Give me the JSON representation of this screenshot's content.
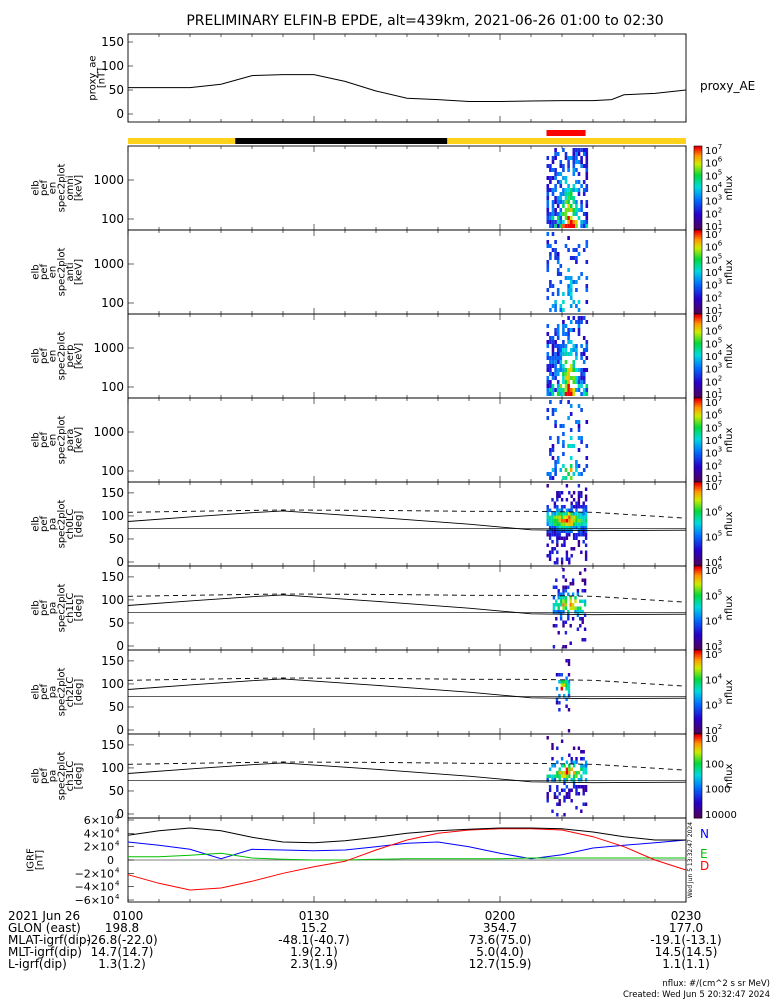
{
  "title": "PRELIMINARY ELFIN-B EPDE, alt=439km, 2021-06-26 01:00 to 02:30",
  "colors": {
    "sunlit": "#ffd21a",
    "shadow": "#000000",
    "science": "#ff0000",
    "bfield_n": "#0000ff",
    "bfield_e": "#00c000",
    "bfield_d": "#ff0000",
    "bfield_total": "#000000"
  },
  "orbit_bar": {
    "segments": [
      {
        "start_min": 0,
        "end_min": 17.3,
        "state": "sunlit"
      },
      {
        "start_min": 17.3,
        "end_min": 51.5,
        "state": "shadow"
      },
      {
        "start_min": 51.5,
        "end_min": 90,
        "state": "sunlit"
      }
    ],
    "science_zone": {
      "start_min": 67.5,
      "end_min": 73.8
    }
  },
  "chart_data": [
    {
      "type": "line",
      "panel": "proxy_ae",
      "ylabel": [
        "proxy_ae",
        "[nT]"
      ],
      "series_label": "proxy_AE",
      "yticks": [
        "150",
        "100",
        "50",
        "0"
      ],
      "ylim": [
        0,
        150
      ],
      "x_min": [
        0,
        5,
        10,
        15,
        20,
        25,
        30,
        35,
        40,
        45,
        50,
        55,
        60,
        65,
        70,
        75,
        78,
        80,
        85,
        90
      ],
      "y": [
        55,
        55,
        55,
        62,
        80,
        82,
        82,
        68,
        48,
        33,
        30,
        26,
        26,
        27,
        28,
        28,
        30,
        40,
        43,
        50
      ]
    },
    {
      "type": "heatmap",
      "panel": "spectrogram",
      "ylabel": [
        "elb",
        "pef",
        "en",
        "spec2plot",
        "omni",
        "[keV]"
      ],
      "yticks": [
        "1000",
        "100"
      ],
      "y_unit": "keV",
      "cbar_label": "nflux",
      "cbar_ticks": [
        "10",
        "10",
        "10",
        "10",
        "10",
        "10",
        "10"
      ],
      "cbar_exps": [
        "1",
        "2",
        "3",
        "4",
        "5",
        "6",
        "7"
      ],
      "active_window_min": [
        67.5,
        73.8
      ]
    },
    {
      "type": "heatmap",
      "panel": "spectrogram",
      "ylabel": [
        "elb",
        "pef",
        "en",
        "spec2plot",
        "anti",
        "[keV]"
      ],
      "yticks": [
        "1000",
        "100"
      ],
      "y_unit": "keV",
      "cbar_label": "nflux",
      "cbar_ticks": [
        "10",
        "10",
        "10",
        "10",
        "10",
        "10",
        "10"
      ],
      "cbar_exps": [
        "1",
        "2",
        "3",
        "4",
        "5",
        "6",
        "7"
      ],
      "active_window_min": [
        67.5,
        73.8
      ]
    },
    {
      "type": "heatmap",
      "panel": "spectrogram",
      "ylabel": [
        "elb",
        "pef",
        "en",
        "spec2plot",
        "perp",
        "[keV]"
      ],
      "yticks": [
        "1000",
        "100"
      ],
      "y_unit": "keV",
      "cbar_label": "nflux",
      "cbar_ticks": [
        "10",
        "10",
        "10",
        "10",
        "10",
        "10",
        "10"
      ],
      "cbar_exps": [
        "1",
        "2",
        "3",
        "4",
        "5",
        "6",
        "7"
      ],
      "active_window_min": [
        67.5,
        73.8
      ]
    },
    {
      "type": "heatmap",
      "panel": "spectrogram",
      "ylabel": [
        "elb",
        "pef",
        "en",
        "spec2plot",
        "para",
        "[keV]"
      ],
      "yticks": [
        "1000",
        "100"
      ],
      "y_unit": "keV",
      "cbar_label": "nflux",
      "cbar_ticks": [
        "10",
        "10",
        "10",
        "10",
        "10",
        "10",
        "10"
      ],
      "cbar_exps": [
        "1",
        "2",
        "3",
        "4",
        "5",
        "6",
        "7"
      ],
      "active_window_min": [
        67.5,
        73.8
      ]
    },
    {
      "type": "heatmap",
      "panel": "pitch_angle",
      "ylabel": [
        "elb",
        "pef",
        "pa",
        "spec2plot",
        "ch0LC",
        "[deg]"
      ],
      "yticks": [
        "150",
        "100",
        "50",
        "0"
      ],
      "ylim": [
        0,
        180
      ],
      "cbar_label": "nflux",
      "cbar_ticks": [
        "10",
        "10",
        "10",
        "10"
      ],
      "cbar_exps": [
        "4",
        "5",
        "6",
        "7"
      ],
      "loss_cone_solid_deg": [
        88,
        98,
        107,
        111,
        97,
        82,
        70,
        68,
        69
      ],
      "loss_cone_dashed_deg": [
        108,
        110,
        112,
        113,
        112,
        110,
        110,
        108,
        95
      ],
      "lc_x_min": [
        0,
        10,
        20,
        25,
        40,
        55,
        65,
        75,
        90
      ],
      "active_window_min": [
        67.5,
        73.8
      ]
    },
    {
      "type": "heatmap",
      "panel": "pitch_angle",
      "ylabel": [
        "elb",
        "pef",
        "pa",
        "spec2plot",
        "ch1LC",
        "[deg]"
      ],
      "yticks": [
        "150",
        "100",
        "50",
        "0"
      ],
      "ylim": [
        0,
        180
      ],
      "cbar_label": "nflux",
      "cbar_ticks": [
        "10",
        "10",
        "10",
        "10"
      ],
      "cbar_exps": [
        "3",
        "4",
        "5",
        "6"
      ],
      "loss_cone_solid_deg": [
        88,
        98,
        107,
        111,
        97,
        82,
        70,
        68,
        69
      ],
      "loss_cone_dashed_deg": [
        108,
        110,
        112,
        113,
        112,
        110,
        110,
        108,
        95
      ],
      "lc_x_min": [
        0,
        10,
        20,
        25,
        40,
        55,
        65,
        75,
        90
      ],
      "active_window_min": [
        68.5,
        73.8
      ]
    },
    {
      "type": "heatmap",
      "panel": "pitch_angle",
      "ylabel": [
        "elb",
        "pef",
        "pa",
        "spec2plot",
        "ch2LC",
        "[deg]"
      ],
      "yticks": [
        "150",
        "100",
        "50",
        "0"
      ],
      "ylim": [
        0,
        180
      ],
      "cbar_label": "nflux",
      "cbar_ticks": [
        "10",
        "10",
        "10",
        "10"
      ],
      "cbar_exps": [
        "2",
        "3",
        "4",
        "5"
      ],
      "loss_cone_solid_deg": [
        88,
        98,
        107,
        111,
        97,
        82,
        70,
        68,
        69
      ],
      "loss_cone_dashed_deg": [
        108,
        110,
        112,
        113,
        112,
        110,
        110,
        108,
        95
      ],
      "lc_x_min": [
        0,
        10,
        20,
        25,
        40,
        55,
        65,
        75,
        90
      ],
      "active_window_min": [
        69,
        71
      ]
    },
    {
      "type": "heatmap",
      "panel": "pitch_angle",
      "ylabel": [
        "elb",
        "pef",
        "pa",
        "spec2plot",
        "ch3LC",
        "[deg]"
      ],
      "yticks": [
        "150",
        "100",
        "50",
        "0"
      ],
      "ylim": [
        0,
        180
      ],
      "cbar_label": "nflux",
      "cbar_ticks": [
        "10000",
        "1000",
        "100",
        "10"
      ],
      "cbar_exps": [
        "",
        "",
        "",
        ""
      ],
      "loss_cone_solid_deg": [
        88,
        98,
        107,
        111,
        97,
        82,
        70,
        68,
        69
      ],
      "loss_cone_dashed_deg": [
        108,
        110,
        112,
        113,
        112,
        110,
        110,
        108,
        95
      ],
      "lc_x_min": [
        0,
        10,
        20,
        25,
        40,
        55,
        65,
        75,
        90
      ],
      "active_window_min": [
        67.5,
        73.8
      ]
    },
    {
      "type": "line",
      "panel": "igrf",
      "ylabel": [
        "IGRF",
        "[nT]"
      ],
      "yticks": [
        "6×10",
        "4×10",
        "2×10",
        "0",
        "−2×10",
        "−4×10",
        "−6×10"
      ],
      "ytick_exps": [
        "4",
        "4",
        "4",
        "",
        "4",
        "4",
        "4"
      ],
      "ylim": [
        -60000,
        60000
      ],
      "x_min": [
        0,
        5,
        10,
        15,
        20,
        25,
        30,
        35,
        40,
        45,
        50,
        55,
        60,
        65,
        70,
        75,
        80,
        85,
        90
      ],
      "series": [
        {
          "name": "N",
          "color": "#0000ff",
          "values": [
            27000,
            22000,
            16000,
            2000,
            16000,
            15000,
            14000,
            15000,
            20000,
            25000,
            27000,
            20000,
            10000,
            2000,
            8000,
            18000,
            22000,
            26000,
            30000
          ]
        },
        {
          "name": "E",
          "color": "#00c000",
          "values": [
            5000,
            5000,
            7000,
            10000,
            3000,
            1000,
            0,
            0,
            1000,
            2000,
            2000,
            2000,
            2000,
            3000,
            3000,
            3000,
            3000,
            3000,
            3000
          ]
        },
        {
          "name": "D",
          "color": "#ff0000",
          "values": [
            -22000,
            -35000,
            -45000,
            -42000,
            -32000,
            -20000,
            -10000,
            -2000,
            15000,
            30000,
            40000,
            45000,
            47000,
            47000,
            45000,
            35000,
            20000,
            0,
            -15000
          ]
        },
        {
          "name": "",
          "color": "#000000",
          "values": [
            37000,
            44000,
            48000,
            44000,
            34000,
            27000,
            26000,
            29000,
            34000,
            40000,
            44000,
            46000,
            48000,
            48000,
            47000,
            42000,
            35000,
            30000,
            30000
          ]
        }
      ],
      "footer_stamp": "Wed Jun  5 13:32:47 2024"
    }
  ],
  "xaxis": {
    "date_label": "2021 Jun 26",
    "ticks": [
      {
        "min": 0,
        "label": "0100"
      },
      {
        "min": 30,
        "label": "0130"
      },
      {
        "min": 60,
        "label": "0200"
      },
      {
        "min": 90,
        "label": "0230"
      }
    ]
  },
  "ephemeris": [
    {
      "label": "GLON (east)",
      "values": [
        "198.8",
        "15.2",
        "354.7",
        "177.0"
      ]
    },
    {
      "label": "MLAT-igrf(dip)",
      "values": [
        "-26.8(-22.0)",
        "-48.1(-40.7)",
        "73.6(75.0)",
        "-19.1(-13.1)"
      ]
    },
    {
      "label": "MLT-igrf(dip)",
      "values": [
        "14.7(14.7)",
        "1.9(2.1)",
        "5.0(4.0)",
        "14.5(14.5)"
      ]
    },
    {
      "label": "L-igrf(dip)",
      "values": [
        "1.3(1.2)",
        "2.3(1.9)",
        "12.7(15.9)",
        "1.1(1.1)"
      ]
    }
  ],
  "footer": {
    "units": "nflux: #/(cm^2 s sr MeV)",
    "created": "Created: Wed Jun  5 20:32:47 2024"
  }
}
